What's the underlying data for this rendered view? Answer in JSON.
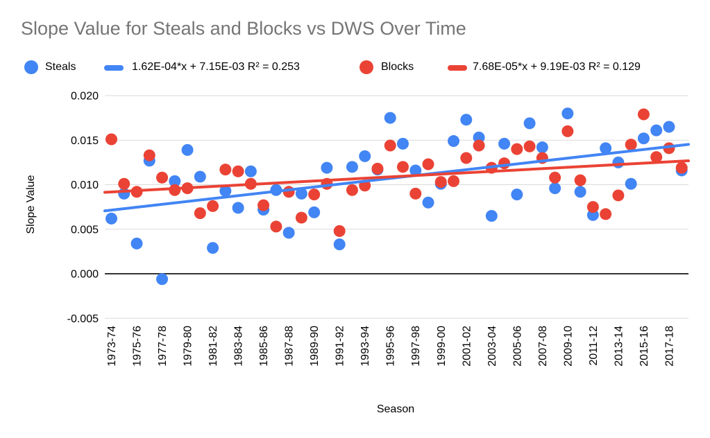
{
  "title": "Slope Value for Steals and Blocks vs DWS Over Time",
  "colors": {
    "steals": "#4285F4",
    "blocks": "#EA4335",
    "title_text": "#757575",
    "grid": "#D9D9D9",
    "zero_line": "#333333",
    "tick_text": "#000000"
  },
  "legend": {
    "steals_label": "Steals",
    "steals_trend_label": "1.62E-04*x + 7.15E-03 R² = 0.253",
    "blocks_label": "Blocks",
    "blocks_trend_label": "7.68E-05*x + 9.19E-03 R² = 0.129"
  },
  "axes": {
    "y_title": "Slope Value",
    "x_title": "Season",
    "y_tick_labels": [
      "0.020",
      "0.015",
      "0.010",
      "0.005",
      "0.000",
      "-0.005"
    ],
    "y_tick_values": [
      0.02,
      0.015,
      0.01,
      0.005,
      0.0,
      -0.005
    ]
  },
  "chart_data": {
    "type": "scatter",
    "title": "Slope Value for Steals and Blocks vs DWS Over Time",
    "xlabel": "Season",
    "ylabel": "Slope Value",
    "ylim": [
      -0.005,
      0.02
    ],
    "grid": true,
    "legend_position": "top",
    "x_label_every": 2,
    "categories": [
      "1973-74",
      "1974-75",
      "1975-76",
      "1976-77",
      "1977-78",
      "1978-79",
      "1979-80",
      "1980-81",
      "1981-82",
      "1982-83",
      "1983-84",
      "1984-85",
      "1985-86",
      "1986-87",
      "1987-88",
      "1988-89",
      "1989-90",
      "1990-91",
      "1991-92",
      "1992-93",
      "1993-94",
      "1994-95",
      "1995-96",
      "1996-97",
      "1997-98",
      "1998-99",
      "1999-00",
      "2000-01",
      "2001-02",
      "2002-03",
      "2003-04",
      "2004-05",
      "2005-06",
      "2006-07",
      "2007-08",
      "2008-09",
      "2009-10",
      "2010-11",
      "2011-12",
      "2012-13",
      "2013-14",
      "2014-15",
      "2015-16",
      "2016-17",
      "2017-18",
      "2018-19"
    ],
    "series": [
      {
        "name": "Steals",
        "color": "#4285F4",
        "values": [
          0.0062,
          0.009,
          0.0034,
          0.0127,
          -0.0006,
          0.0104,
          0.0139,
          0.0109,
          0.0029,
          0.0093,
          0.0074,
          0.0115,
          0.0072,
          0.0094,
          0.0046,
          0.009,
          0.0069,
          0.0119,
          0.0033,
          0.012,
          0.0132,
          0.0117,
          0.0175,
          0.0146,
          0.0116,
          0.008,
          0.0101,
          0.0149,
          0.0173,
          0.0153,
          0.0065,
          0.0146,
          0.0089,
          0.0169,
          0.0142,
          0.0096,
          0.018,
          0.0092,
          0.0066,
          0.0141,
          0.0125,
          0.0101,
          0.0152,
          0.0161,
          0.0165,
          0.0116
        ]
      },
      {
        "name": "Blocks",
        "color": "#EA4335",
        "values": [
          0.0151,
          0.0101,
          0.0092,
          0.0133,
          0.0108,
          0.0094,
          0.0096,
          0.0068,
          0.0076,
          0.0117,
          0.0115,
          0.0101,
          0.0077,
          0.0053,
          0.0092,
          0.0063,
          0.0089,
          0.0101,
          0.0048,
          0.0094,
          0.0099,
          0.0118,
          0.0144,
          0.012,
          0.009,
          0.0123,
          0.0103,
          0.0104,
          0.013,
          0.0144,
          0.0119,
          0.0124,
          0.014,
          0.0143,
          0.013,
          0.0108,
          0.016,
          0.0105,
          0.0075,
          0.0067,
          0.0088,
          0.0145,
          0.0179,
          0.0131,
          0.0141,
          0.0119
        ]
      }
    ],
    "trendlines": [
      {
        "series": "Steals",
        "label": "1.62E-04*x + 7.15E-03 R² = 0.253",
        "slope": 0.000162,
        "intercept": 0.00715,
        "r2": 0.253,
        "color": "#4285F4"
      },
      {
        "series": "Blocks",
        "label": "7.68E-05*x + 9.19E-03 R² = 0.129",
        "slope": 7.68e-05,
        "intercept": 0.00919,
        "r2": 0.129,
        "color": "#EA4335"
      }
    ]
  }
}
